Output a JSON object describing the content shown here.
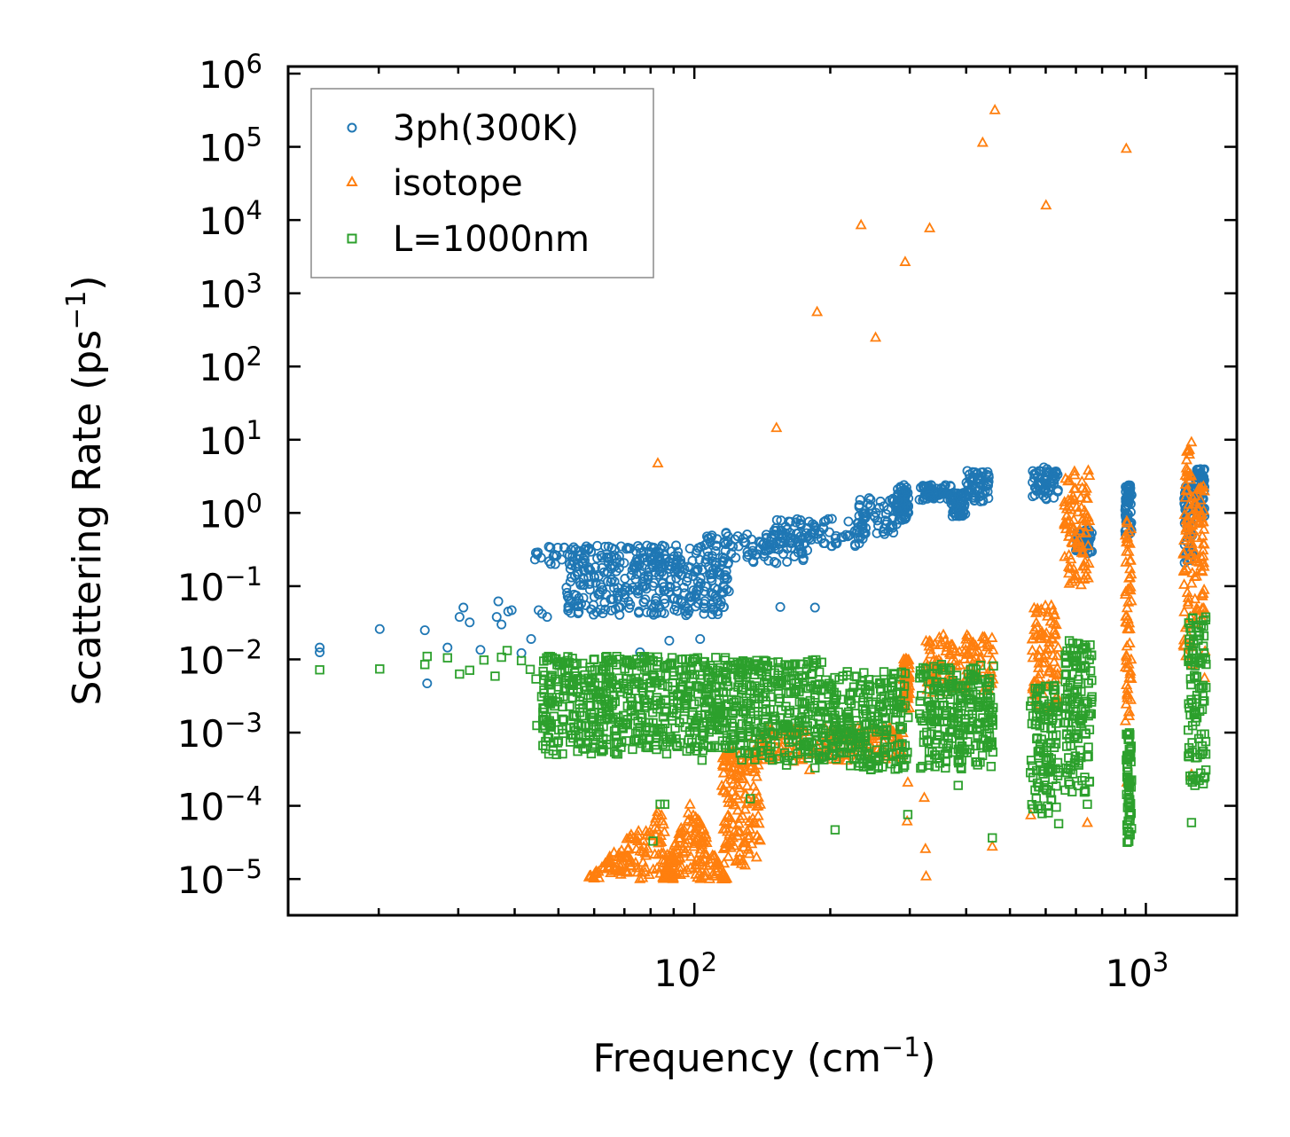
{
  "chart_data": {
    "type": "scatter",
    "title": "",
    "xlabel": "Frequency (cm",
    "xlabel_sup": "−1",
    "xlabel_end": ")",
    "ylabel": "Scattering Rate (ps",
    "ylabel_sup": "−1",
    "ylabel_end": ")",
    "xscale": "log",
    "yscale": "log",
    "xlim": [
      12.6,
      1590
    ],
    "ylim": [
      3.2e-06,
      1250000.0
    ],
    "x_ticks": [
      {
        "value": 100,
        "base": "10",
        "exp": "2"
      },
      {
        "value": 1000,
        "base": "10",
        "exp": "3"
      }
    ],
    "y_ticks": [
      {
        "value": 1000000.0,
        "base": "10",
        "exp": "6"
      },
      {
        "value": 100000.0,
        "base": "10",
        "exp": "5"
      },
      {
        "value": 10000.0,
        "base": "10",
        "exp": "4"
      },
      {
        "value": 1000.0,
        "base": "10",
        "exp": "3"
      },
      {
        "value": 100.0,
        "base": "10",
        "exp": "2"
      },
      {
        "value": 10.0,
        "base": "10",
        "exp": "1"
      },
      {
        "value": 1.0,
        "base": "10",
        "exp": "0"
      },
      {
        "value": 0.1,
        "base": "10",
        "exp": "−1"
      },
      {
        "value": 0.01,
        "base": "10",
        "exp": "−2"
      },
      {
        "value": 0.001,
        "base": "10",
        "exp": "−3"
      },
      {
        "value": 0.0001,
        "base": "10",
        "exp": "−4"
      },
      {
        "value": 1e-05,
        "base": "10",
        "exp": "−5"
      }
    ],
    "grid": false,
    "legend": {
      "position": "top-left",
      "entries": [
        "3ph(300K)",
        "isotope",
        "L=1000nm"
      ]
    },
    "series": [
      {
        "name": "3ph(300K)",
        "marker": "circle",
        "color": "#1f77b4",
        "points": [
          [
            14.8,
            0.0145
          ],
          [
            14.8,
            0.0125
          ],
          [
            20.1,
            0.026
          ],
          [
            25.3,
            0.025
          ],
          [
            25.6,
            0.0047
          ],
          [
            28.4,
            0.0145
          ],
          [
            30.2,
            0.038
          ],
          [
            30.8,
            0.051
          ],
          [
            31.8,
            0.032
          ],
          [
            33.6,
            0.0135
          ],
          [
            36.8,
            0.062
          ],
          [
            36.5,
            0.038
          ],
          [
            37.4,
            0.03
          ],
          [
            38.7,
            0.045
          ],
          [
            39.4,
            0.047
          ],
          [
            41.4,
            0.0122
          ],
          [
            43.5,
            0.019
          ],
          [
            45.2,
            0.047
          ],
          [
            46.0,
            0.042
          ],
          [
            47.2,
            0.038
          ],
          [
            49.5,
            0.0092
          ],
          [
            53.3,
            0.043
          ],
          [
            62.0,
            0.048
          ],
          [
            75.8,
            0.0125
          ],
          [
            88.0,
            0.018
          ],
          [
            103,
            0.019
          ],
          [
            118,
            0.09
          ],
          [
            155,
            0.052
          ],
          [
            185,
            0.051
          ]
        ],
        "bands": [
          {
            "x": [
              44,
              110
            ],
            "y": [
              0.18,
              0.36
            ]
          },
          {
            "x": [
              52,
              120
            ],
            "y": [
              0.04,
              0.22
            ]
          },
          {
            "x": [
              105,
              180
            ],
            "y": [
              0.2,
              0.55
            ]
          },
          {
            "x": [
              150,
              240
            ],
            "y": [
              0.35,
              0.85
            ]
          },
          {
            "x": [
              230,
              285
            ],
            "y": [
              0.5,
              1.6
            ]
          },
          {
            "x": [
              280,
              298
            ],
            "y": [
              0.8,
              2.5
            ]
          },
          {
            "x": [
              315,
              370
            ],
            "y": [
              1.5,
              2.5
            ]
          },
          {
            "x": [
              370,
              400
            ],
            "y": [
              0.9,
              1.9
            ]
          },
          {
            "x": [
              400,
              450
            ],
            "y": [
              1.4,
              3.8
            ]
          },
          {
            "x": [
              560,
              640
            ],
            "y": [
              1.5,
              4.2
            ]
          },
          {
            "x": [
              700,
              760
            ],
            "y": [
              0.27,
              0.6
            ]
          },
          {
            "x": [
              900,
              930
            ],
            "y": [
              0.5,
              2.4
            ]
          },
          {
            "x": [
              1215,
              1270
            ],
            "y": [
              0.2,
              2.5
            ]
          },
          {
            "x": [
              1290,
              1350
            ],
            "y": [
              0.9,
              4.0
            ]
          }
        ]
      },
      {
        "name": "isotope",
        "marker": "triangle",
        "color": "#ff7f0e",
        "points": [
          [
            83,
            4.8
          ],
          [
            152,
            14.6
          ],
          [
            187,
            560
          ],
          [
            234,
            8600
          ],
          [
            252,
            250
          ],
          [
            293,
            2700
          ],
          [
            332,
            7800
          ],
          [
            435,
            115000
          ],
          [
            463,
            320000
          ],
          [
            601,
            16000
          ],
          [
            905,
            95000
          ],
          [
            296,
            6.2e-05
          ],
          [
            297,
            0.00021
          ],
          [
            323,
            0.00013
          ],
          [
            325,
            2.6e-05
          ],
          [
            326,
            1.1e-05
          ],
          [
            457,
            2.8e-05
          ],
          [
            556,
            7.5e-05
          ],
          [
            742,
            5.9e-05
          ],
          [
            908,
            0.00021
          ],
          [
            906,
            0.0045
          ],
          [
            1262,
            0.00027
          ],
          [
            1352,
            0.013
          ],
          [
            1349,
            0.0056
          ],
          [
            180,
            0.00031
          ],
          [
            137,
            0.00016
          ],
          [
            140,
            0.000105
          ],
          [
            125,
            0.000125
          ],
          [
            88,
            1.07e-05
          ],
          [
            60,
            1.03e-05
          ]
        ],
        "bands": [
          {
            "x": [
              58,
              90
            ],
            "y": [
              1e-05,
              5e-05
            ],
            "shape": "peak",
            "peak_x": 84,
            "peak_y": 0.00011
          },
          {
            "x": [
              85,
              118
            ],
            "y": [
              1e-05,
              0.0001
            ],
            "shape": "peak",
            "peak_x": 98,
            "peak_y": 0.00012
          },
          {
            "x": [
              115,
              140
            ],
            "y": [
              1.5e-05,
              0.0006
            ]
          },
          {
            "x": [
              135,
              290
            ],
            "y": [
              0.0004,
              0.0012
            ]
          },
          {
            "x": [
              290,
              300
            ],
            "y": [
              0.002,
              0.0105
            ]
          },
          {
            "x": [
              325,
              460
            ],
            "y": [
              0.0035,
              0.022
            ]
          },
          {
            "x": [
              560,
              640
            ],
            "y": [
              0.002,
              0.055
            ]
          },
          {
            "x": [
              660,
              750
            ],
            "y": [
              0.1,
              4.0
            ]
          },
          {
            "x": [
              900,
              930
            ],
            "y": [
              0.0014,
              0.85
            ]
          },
          {
            "x": [
              1210,
              1270
            ],
            "y": [
              0.008,
              10.0
            ]
          },
          {
            "x": [
              1280,
              1350
            ],
            "y": [
              0.03,
              3.0
            ]
          }
        ]
      },
      {
        "name": "L=1000nm",
        "marker": "square",
        "color": "#2ca02c",
        "points": [
          [
            14.8,
            0.0072
          ],
          [
            20.1,
            0.0074
          ],
          [
            25.3,
            0.0085
          ],
          [
            25.6,
            0.011
          ],
          [
            28.4,
            0.0105
          ],
          [
            30.2,
            0.0063
          ],
          [
            31.8,
            0.0071
          ],
          [
            34.2,
            0.0098
          ],
          [
            36.2,
            0.0059
          ],
          [
            37.4,
            0.0107
          ],
          [
            38.5,
            0.0132
          ],
          [
            41.4,
            0.0096
          ],
          [
            43.3,
            0.0073
          ],
          [
            44.6,
            0.0054
          ],
          [
            45.9,
            0.0031
          ],
          [
            44.8,
            0.00125
          ],
          [
            46.2,
            0.0019
          ],
          [
            81,
            3.3e-05
          ],
          [
            84,
            0.000105
          ],
          [
            86,
            0.000105
          ],
          [
            91,
            0.00082
          ],
          [
            104,
            0.00042
          ],
          [
            114,
            0.0016
          ],
          [
            128,
            0.0009
          ],
          [
            133,
            0.000125
          ],
          [
            160,
            0.00036
          ],
          [
            185,
            0.00033
          ],
          [
            205,
            4.7e-05
          ],
          [
            297,
            7.6e-05
          ],
          [
            384,
            0.00019
          ],
          [
            457,
            3.65e-05
          ],
          [
            641,
            5.7e-05
          ],
          [
            742,
            0.000105
          ],
          [
            1262,
            5.9e-05
          ],
          [
            1284,
            0.00019
          ]
        ],
        "bands": [
          {
            "x": [
              46,
              120
            ],
            "y": [
              0.0005,
              0.011
            ]
          },
          {
            "x": [
              120,
              200
            ],
            "y": [
              0.0004,
              0.01
            ]
          },
          {
            "x": [
              200,
              298
            ],
            "y": [
              0.0003,
              0.007
            ]
          },
          {
            "x": [
              315,
              460
            ],
            "y": [
              0.0003,
              0.0085
            ]
          },
          {
            "x": [
              555,
              640
            ],
            "y": [
              7e-05,
              0.0045
            ]
          },
          {
            "x": [
              660,
              760
            ],
            "y": [
              0.00015,
              0.018
            ]
          },
          {
            "x": [
              905,
              930
            ],
            "y": [
              3e-05,
              0.001
            ]
          },
          {
            "x": [
              1240,
              1360
            ],
            "y": [
              0.0002,
              0.038
            ]
          }
        ]
      }
    ]
  }
}
